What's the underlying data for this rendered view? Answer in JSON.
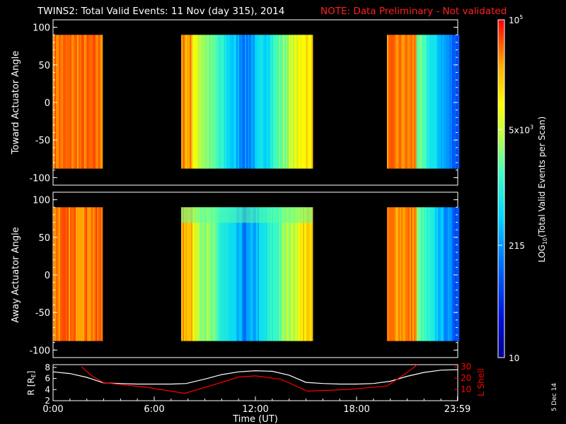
{
  "title": "TWINS2: Total Valid Events: 11 Nov (day 315), 2014",
  "note": "NOTE: Data Preliminary - Not validated",
  "side_date": "5 Dec 14",
  "colors": {
    "note": "#ff2020",
    "lshell": "#ff0000",
    "radius": "#ffffff",
    "background": "#000000",
    "axes": "#ffffff"
  },
  "chart_data": [
    {
      "type": "heatmap",
      "ylabel": "Toward Actuator Angle",
      "ylim": [
        -110,
        110
      ],
      "yticks": [
        100,
        50,
        0,
        -50,
        -100
      ],
      "xlim": [
        0,
        24
      ],
      "coverage_hours": [
        [
          0,
          2.9
        ],
        [
          7.6,
          15.4
        ],
        [
          19.8,
          24
        ]
      ],
      "angle_range": [
        -88,
        90
      ]
    },
    {
      "type": "heatmap",
      "ylabel": "Away Actuator Angle",
      "ylim": [
        -110,
        110
      ],
      "yticks": [
        100,
        50,
        0,
        -50,
        -100
      ],
      "xlim": [
        0,
        24
      ],
      "coverage_hours": [
        [
          0,
          2.9
        ],
        [
          7.6,
          15.4
        ],
        [
          19.8,
          24
        ]
      ],
      "angle_range": [
        -88,
        90
      ]
    },
    {
      "type": "line",
      "xlabel": "Time (UT)",
      "xticks": [
        {
          "v": 0,
          "label": "0:00"
        },
        {
          "v": 6,
          "label": "6:00"
        },
        {
          "v": 12,
          "label": "12:00"
        },
        {
          "v": 18,
          "label": "18:00"
        },
        {
          "v": 23.98,
          "label": "23:59"
        }
      ],
      "xlim": [
        0,
        24
      ],
      "ylabel_left": "R [R",
      "ylabel_left_sub": "E",
      "ylabel_left_end": "]",
      "ylim_left": [
        2,
        8.5
      ],
      "yticks_left": [
        8,
        6,
        4,
        2
      ],
      "ylabel_right": "L Shell",
      "ylim_right": [
        0,
        32
      ],
      "yticks_right": [
        30,
        20,
        10
      ],
      "series": [
        {
          "x": [
            0,
            1,
            2,
            3,
            4,
            5,
            6,
            7,
            7.9,
            9,
            10,
            11,
            12,
            13,
            14,
            15,
            16,
            17,
            18,
            19,
            20,
            21,
            22,
            23,
            24
          ],
          "y": [
            7.2,
            6.9,
            6.2,
            5.2,
            5.1,
            5.0,
            5.0,
            5.0,
            5.1,
            5.9,
            6.7,
            7.2,
            7.4,
            7.3,
            6.6,
            5.3,
            5.1,
            5.0,
            5.0,
            5.1,
            5.5,
            6.4,
            7.1,
            7.5,
            7.6
          ]
        },
        {
          "x": [
            1.7,
            2.3,
            3.0,
            5.5,
            7.8,
            9.5,
            11.0,
            12.0,
            13.5,
            15.1,
            17.5,
            19.8,
            21.0,
            21.6
          ],
          "y": [
            30,
            22,
            16,
            12,
            6.5,
            14,
            21,
            22,
            19,
            8.5,
            10,
            13,
            25,
            32
          ]
        }
      ]
    },
    {
      "type": "colorbar",
      "ylabel": "LOG",
      "ylabel_sub": "10",
      "ylabel_end": "(Total Valid Events per Scan)",
      "ticks": [
        {
          "v": 1,
          "label": "10"
        },
        {
          "v": 2.33,
          "label": "215"
        },
        {
          "v": 3.7,
          "label": "5x10",
          "sup": "3"
        },
        {
          "v": 5,
          "label": "10",
          "sup": "5"
        }
      ],
      "range": [
        1,
        5
      ]
    }
  ]
}
